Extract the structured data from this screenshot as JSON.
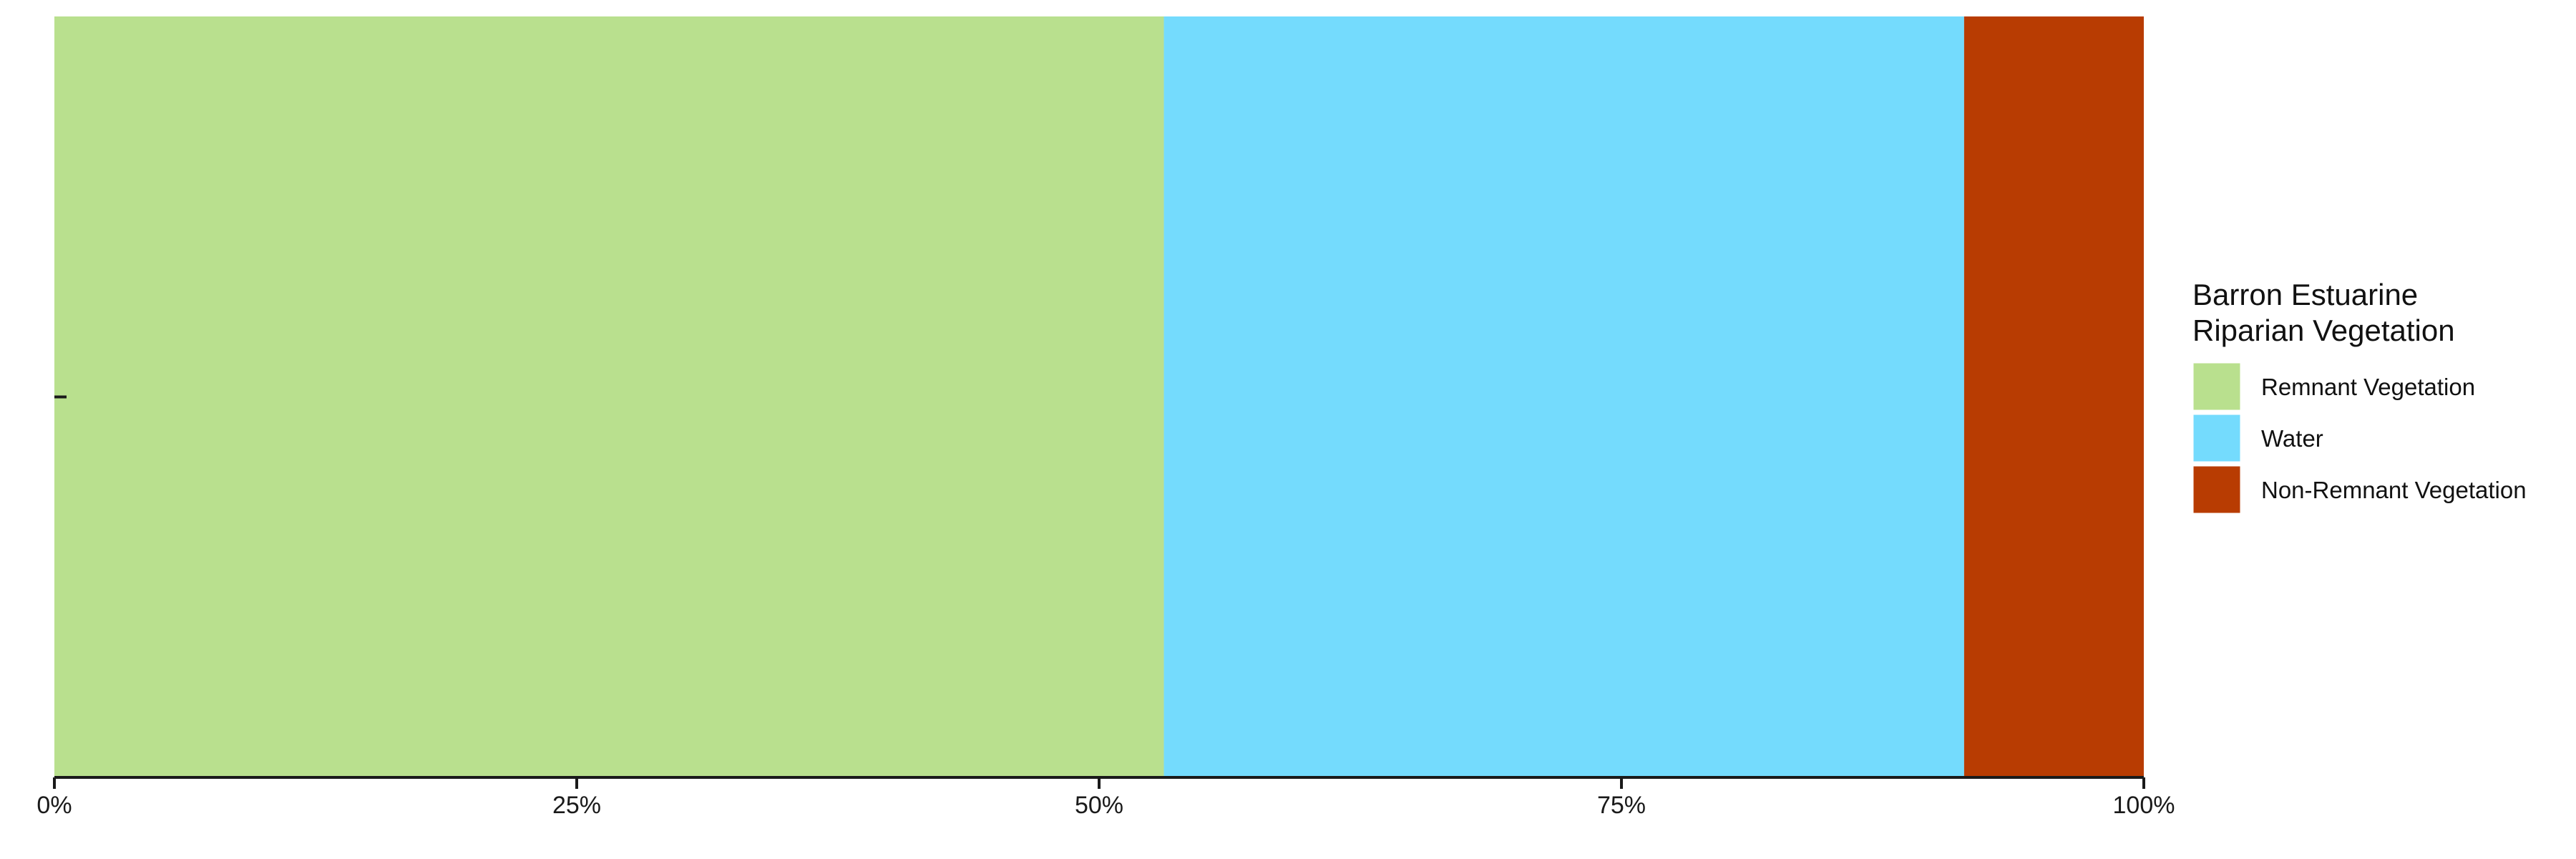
{
  "chart_data": {
    "type": "bar",
    "orientation": "horizontal",
    "stacked": true,
    "normalized": true,
    "categories": [
      ""
    ],
    "series": [
      {
        "name": "Remnant Vegetation",
        "values": [
          53.1
        ],
        "color": "#b9e08e"
      },
      {
        "name": "Water",
        "values": [
          38.3
        ],
        "color": "#74dbfd"
      },
      {
        "name": "Non-Remnant Vegetation",
        "values": [
          8.6
        ],
        "color": "#b83c02"
      }
    ],
    "xlim": [
      0,
      100
    ],
    "xticks": [
      0,
      25,
      50,
      75,
      100
    ],
    "xtick_labels": [
      "0%",
      "25%",
      "50%",
      "75%",
      "100%"
    ],
    "title": "",
    "xlabel": "",
    "ylabel": "",
    "grid": false,
    "legend": {
      "title_lines": [
        "Barron Estuarine",
        "Riparian Vegetation"
      ],
      "position": "right"
    }
  }
}
